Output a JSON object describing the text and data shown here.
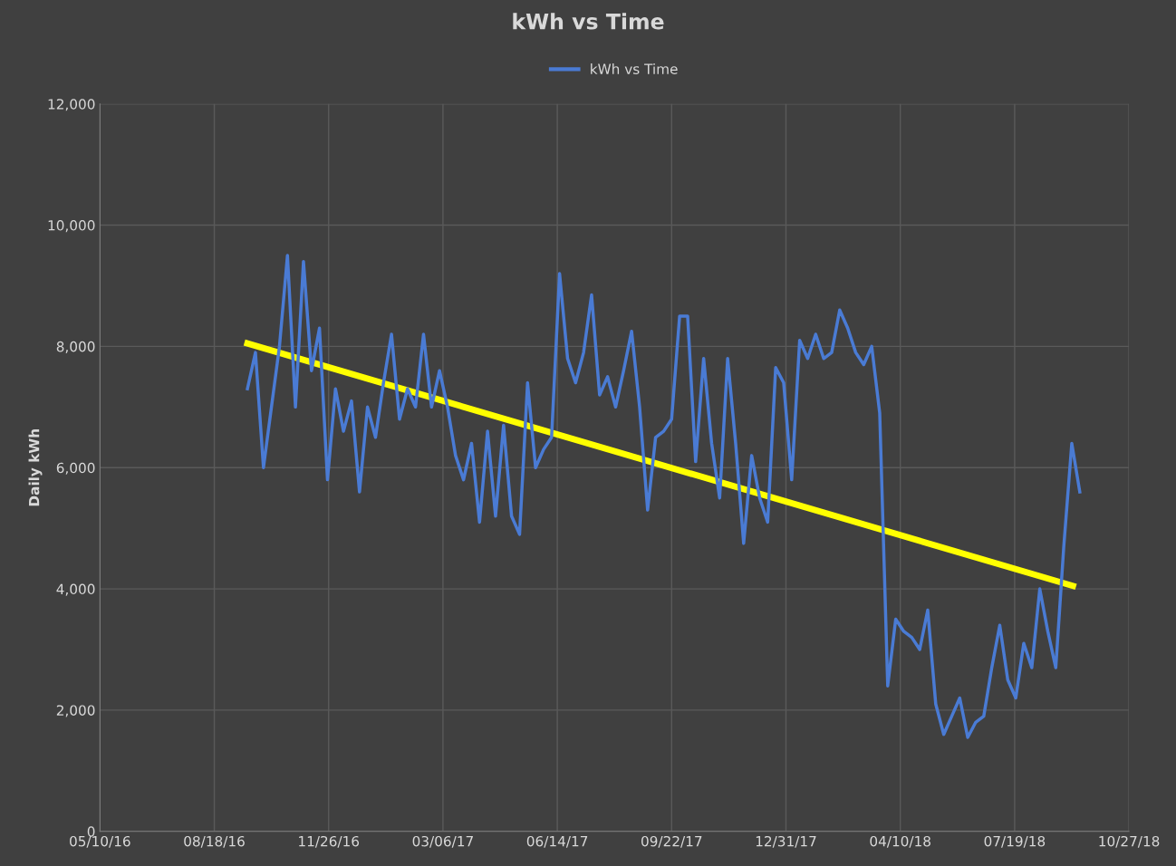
{
  "chart_data": {
    "type": "line",
    "title": "kWh vs Time",
    "ylabel": "Daily kWh",
    "legend": "top",
    "grid": true,
    "marker": "none",
    "line_style": "solid",
    "xlim": [
      "2016-05-10",
      "2018-10-27"
    ],
    "xticks": [
      {
        "value": "2016-05-10",
        "label": "05/10/16"
      },
      {
        "value": "2016-08-18",
        "label": "08/18/16"
      },
      {
        "value": "2016-11-26",
        "label": "11/26/16"
      },
      {
        "value": "2017-03-06",
        "label": "03/06/17"
      },
      {
        "value": "2017-06-14",
        "label": "06/14/17"
      },
      {
        "value": "2017-09-22",
        "label": "09/22/17"
      },
      {
        "value": "2017-12-31",
        "label": "12/31/17"
      },
      {
        "value": "2018-04-10",
        "label": "04/10/18"
      },
      {
        "value": "2018-07-19",
        "label": "07/19/18"
      },
      {
        "value": "2018-10-27",
        "label": "10/27/18"
      }
    ],
    "ylim": [
      0,
      12000
    ],
    "yticks": [
      0,
      {
        "value": 2000,
        "label": "2,000"
      },
      {
        "value": 4000,
        "label": "4,000"
      },
      {
        "value": 6000,
        "label": "6,000"
      },
      {
        "value": 8000,
        "label": "8,000"
      },
      {
        "value": 10000,
        "label": "10,000"
      },
      {
        "value": 12000,
        "label": "12,000"
      }
    ],
    "series": [
      {
        "name": "kWh vs Time",
        "color": "#4a7bd4",
        "x": [
          "2016-09-16",
          "2016-09-23",
          "2016-09-30",
          "2016-10-07",
          "2016-10-14",
          "2016-10-21",
          "2016-10-28",
          "2016-11-04",
          "2016-11-11",
          "2016-11-18",
          "2016-11-25",
          "2016-12-02",
          "2016-12-09",
          "2016-12-16",
          "2016-12-23",
          "2016-12-30",
          "2017-01-06",
          "2017-01-13",
          "2017-01-20",
          "2017-01-27",
          "2017-02-03",
          "2017-02-10",
          "2017-02-17",
          "2017-02-24",
          "2017-03-03",
          "2017-03-10",
          "2017-03-17",
          "2017-03-24",
          "2017-03-31",
          "2017-04-07",
          "2017-04-14",
          "2017-04-21",
          "2017-04-28",
          "2017-05-05",
          "2017-05-12",
          "2017-05-19",
          "2017-05-26",
          "2017-06-02",
          "2017-06-09",
          "2017-06-16",
          "2017-06-23",
          "2017-06-30",
          "2017-07-07",
          "2017-07-14",
          "2017-07-21",
          "2017-07-28",
          "2017-08-04",
          "2017-08-11",
          "2017-08-18",
          "2017-08-25",
          "2017-09-01",
          "2017-09-08",
          "2017-09-15",
          "2017-09-22",
          "2017-09-29",
          "2017-10-06",
          "2017-10-13",
          "2017-10-20",
          "2017-10-27",
          "2017-11-03",
          "2017-11-10",
          "2017-11-17",
          "2017-11-24",
          "2017-12-01",
          "2017-12-08",
          "2017-12-15",
          "2017-12-22",
          "2017-12-29",
          "2018-01-05",
          "2018-01-12",
          "2018-01-19",
          "2018-01-26",
          "2018-02-02",
          "2018-02-09",
          "2018-02-16",
          "2018-02-23",
          "2018-03-02",
          "2018-03-09",
          "2018-03-16",
          "2018-03-23",
          "2018-03-30",
          "2018-04-06",
          "2018-04-13",
          "2018-04-20",
          "2018-04-27",
          "2018-05-04",
          "2018-05-11",
          "2018-05-18",
          "2018-05-25",
          "2018-06-01",
          "2018-06-08",
          "2018-06-15",
          "2018-06-22",
          "2018-06-29",
          "2018-07-06",
          "2018-07-13",
          "2018-07-20",
          "2018-07-27",
          "2018-08-03",
          "2018-08-10",
          "2018-08-17",
          "2018-08-24",
          "2018-08-31",
          "2018-09-07",
          "2018-09-14"
        ],
        "values": [
          7300,
          7900,
          6000,
          7000,
          8000,
          9500,
          7000,
          9400,
          7600,
          8300,
          5800,
          7300,
          6600,
          7100,
          5600,
          7000,
          6500,
          7400,
          8200,
          6800,
          7300,
          7000,
          8200,
          7000,
          7600,
          7000,
          6200,
          5800,
          6400,
          5100,
          6600,
          5200,
          6700,
          5200,
          4900,
          7400,
          6000,
          6300,
          6500,
          9200,
          7800,
          7400,
          7900,
          8850,
          7200,
          7500,
          7000,
          7600,
          8250,
          7000,
          5300,
          6500,
          6600,
          6800,
          8500,
          8500,
          6100,
          7800,
          6400,
          5500,
          7800,
          6400,
          4750,
          6200,
          5500,
          5100,
          7650,
          7400,
          5800,
          8100,
          7800,
          8200,
          7800,
          7900,
          8600,
          8300,
          7900,
          7700,
          8000,
          6900,
          2400,
          3500,
          3300,
          3200,
          3000,
          3650,
          2100,
          1600,
          1900,
          2200,
          1550,
          1800,
          1900,
          2700,
          3400,
          2500,
          2200,
          3100,
          2700,
          4000,
          3300,
          2700,
          4700,
          6400,
          5600
        ]
      },
      {
        "type": "line",
        "color": "#ffff00",
        "x": [
          "2016-09-16",
          "2018-09-08"
        ],
        "values": [
          8050,
          4050
        ]
      }
    ]
  }
}
